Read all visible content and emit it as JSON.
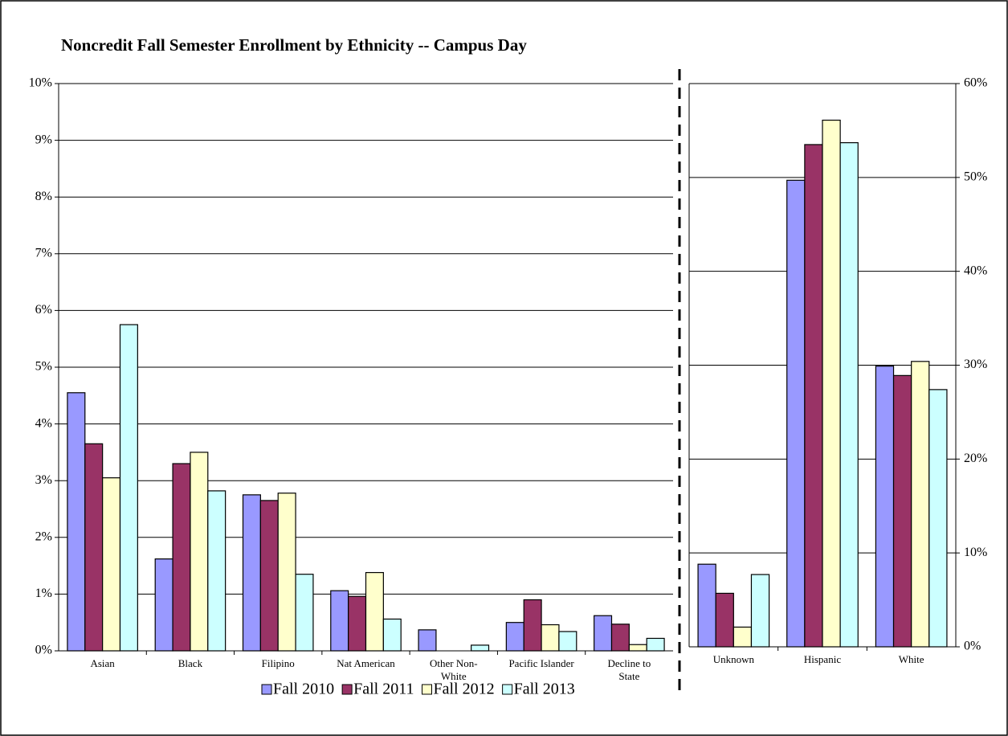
{
  "chart_data": [
    {
      "type": "bar",
      "title": "Noncredit Fall Semester Enrollment by Ethnicity -- Campus Day",
      "categories": [
        "Asian",
        "Black",
        "Filipino",
        "Nat American",
        "Other Non-White",
        "Pacific Islander",
        "Decline to State"
      ],
      "series": [
        {
          "name": "Fall 2010",
          "color": "#9999ff",
          "values": [
            4.55,
            1.62,
            2.75,
            1.06,
            0.37,
            0.5,
            0.62
          ]
        },
        {
          "name": "Fall 2011",
          "color": "#993366",
          "values": [
            3.65,
            3.3,
            2.65,
            0.96,
            0,
            0.9,
            0.47
          ]
        },
        {
          "name": "Fall 2012",
          "color": "#ffffcc",
          "values": [
            3.05,
            3.5,
            2.78,
            1.38,
            0,
            0.46,
            0.11
          ]
        },
        {
          "name": "Fall 2013",
          "color": "#ccffff",
          "values": [
            5.75,
            2.82,
            1.35,
            0.56,
            0.1,
            0.34,
            0.22
          ]
        }
      ],
      "ylim": [
        0,
        10
      ],
      "yticks": [
        {
          "value": 0,
          "label": "0%"
        },
        {
          "value": 1,
          "label": "1%"
        },
        {
          "value": 2,
          "label": "2%"
        },
        {
          "value": 3,
          "label": "3%"
        },
        {
          "value": 4,
          "label": "4%"
        },
        {
          "value": 5,
          "label": "5%"
        },
        {
          "value": 6,
          "label": "6%"
        },
        {
          "value": 7,
          "label": "7%"
        },
        {
          "value": 8,
          "label": "8%"
        },
        {
          "value": 9,
          "label": "9%"
        },
        {
          "value": 10,
          "label": "10%"
        }
      ],
      "grid": true,
      "legend": "bottom"
    },
    {
      "type": "bar",
      "categories": [
        "Unknown",
        "Hispanic",
        "White"
      ],
      "series": [
        {
          "color": "#9999ff",
          "values": [
            8.8,
            49.7,
            29.9
          ]
        },
        {
          "color": "#993366",
          "values": [
            5.7,
            53.5,
            28.9
          ]
        },
        {
          "color": "#ffffcc",
          "values": [
            2.1,
            56.1,
            30.4
          ]
        },
        {
          "color": "#ccffff",
          "values": [
            7.7,
            53.7,
            27.4
          ]
        }
      ],
      "ylim": [
        0,
        60
      ],
      "yticks": [
        {
          "value": 0,
          "label": "0%"
        },
        {
          "value": 10,
          "label": "10%"
        },
        {
          "value": 20,
          "label": "20%"
        },
        {
          "value": 30,
          "label": "30%"
        },
        {
          "value": 40,
          "label": "40%"
        },
        {
          "value": 50,
          "label": "50%"
        },
        {
          "value": 60,
          "label": "60%"
        }
      ],
      "grid": true,
      "yaxis": "right"
    }
  ]
}
